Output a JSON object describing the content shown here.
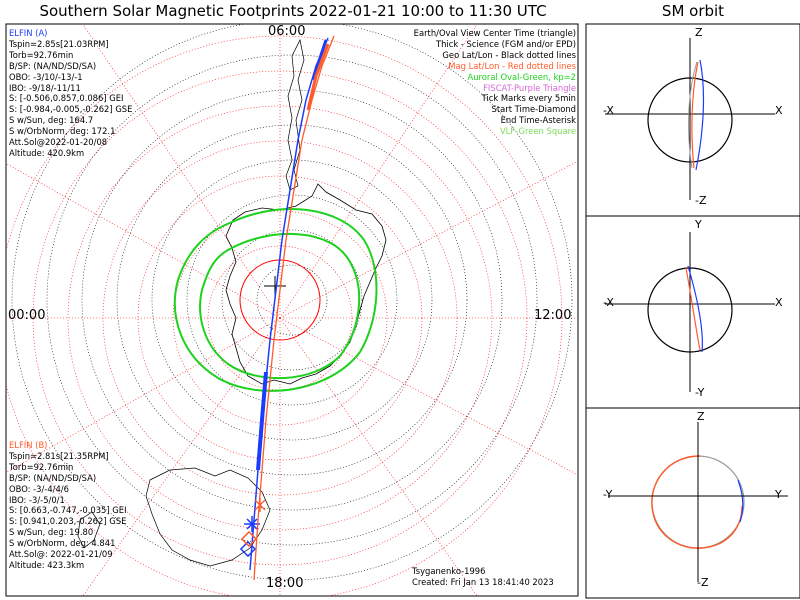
{
  "title": "Southern Solar Magnetic Footprints 2022-01-21 10:00 to 11:30 UTC",
  "orbit_title": "SM orbit",
  "clock_labels": {
    "top": "06:00",
    "left": "00:00",
    "right": "12:00",
    "bottom": "18:00"
  },
  "elfin_a": {
    "name": "ELFIN (A)",
    "lines": [
      "Tspin=2.85s[21.03RPM]",
      "Torb=92.76min",
      "B/SP: (NA/ND/SD/SA)",
      "OBO: -3/10/-13/-1",
      "IBO: -9/18/-11/11",
      "S: [-0.506,0.857,0.086] GEI",
      "S: [-0.984,-0.005,-0.262] GSE",
      "S w/Sun, deg: 164.7",
      "S w/OrbNorm, deg: 172.1",
      "Att.Sol@2022-01-20/08",
      "Altitude: 420.9km"
    ]
  },
  "elfin_b": {
    "name": "ELFIN (B)",
    "lines": [
      "Tspin=2.81s[21.35RPM]",
      "Torb=92.76min",
      "B/SP: (NA/ND/SD/SA)",
      "OBO: -3/-4/4/6",
      "IBO: -3/-5/0/1",
      "S: [0.663,-0.747,-0.035] GEI",
      "S: [0.941,0.203,-0.262] GSE",
      "S w/Sun, deg: 19.80",
      "S w/OrbNorm, deg: 4.841",
      "Att.Sol@: 2022-01-21/09",
      "Altitude: 423.3km"
    ]
  },
  "legend": [
    {
      "text": "Earth/Oval View Center Time (triangle)",
      "color": "#000000"
    },
    {
      "text": "Thick - Science (FGM and/or EPD)",
      "color": "#000000"
    },
    {
      "text": "Geo Lat/Lon - Black dotted lines",
      "color": "#000000"
    },
    {
      "text": "Mag Lat/Lon - Red dotted lines",
      "color": "#ff0000"
    },
    {
      "text": "Auroral Oval-Green, kp=2",
      "color": "#1ed11e"
    },
    {
      "text": "FISCAT-Purple Triangle",
      "color": "#d667d6"
    },
    {
      "text": "Tick Marks every 5min",
      "color": "#000000"
    },
    {
      "text": "Start Time-Diamond",
      "color": "#000000"
    },
    {
      "text": "End Time-Asterisk",
      "color": "#000000"
    },
    {
      "text": "VLF-Green Square",
      "color": "#7bdc5a"
    }
  ],
  "credit": {
    "model": "Tsyganenko-1996",
    "created": "Created: Fri Jan 13 18:41:40 2023"
  },
  "orbit_panels": [
    {
      "top": "Z",
      "bottom": "-Z",
      "left": "-X",
      "right": "X"
    },
    {
      "top": "Y",
      "bottom": "-Y",
      "left": "-X",
      "right": "X"
    },
    {
      "top": "Z",
      "bottom": "-Z",
      "left": "-Y",
      "right": "Y"
    }
  ],
  "colors": {
    "elfin_a": "#1a3cff",
    "elfin_b": "#ff5a2a",
    "mag_grid": "#ff0000",
    "oval": "#1ed11e",
    "geo_grid": "#000000"
  }
}
